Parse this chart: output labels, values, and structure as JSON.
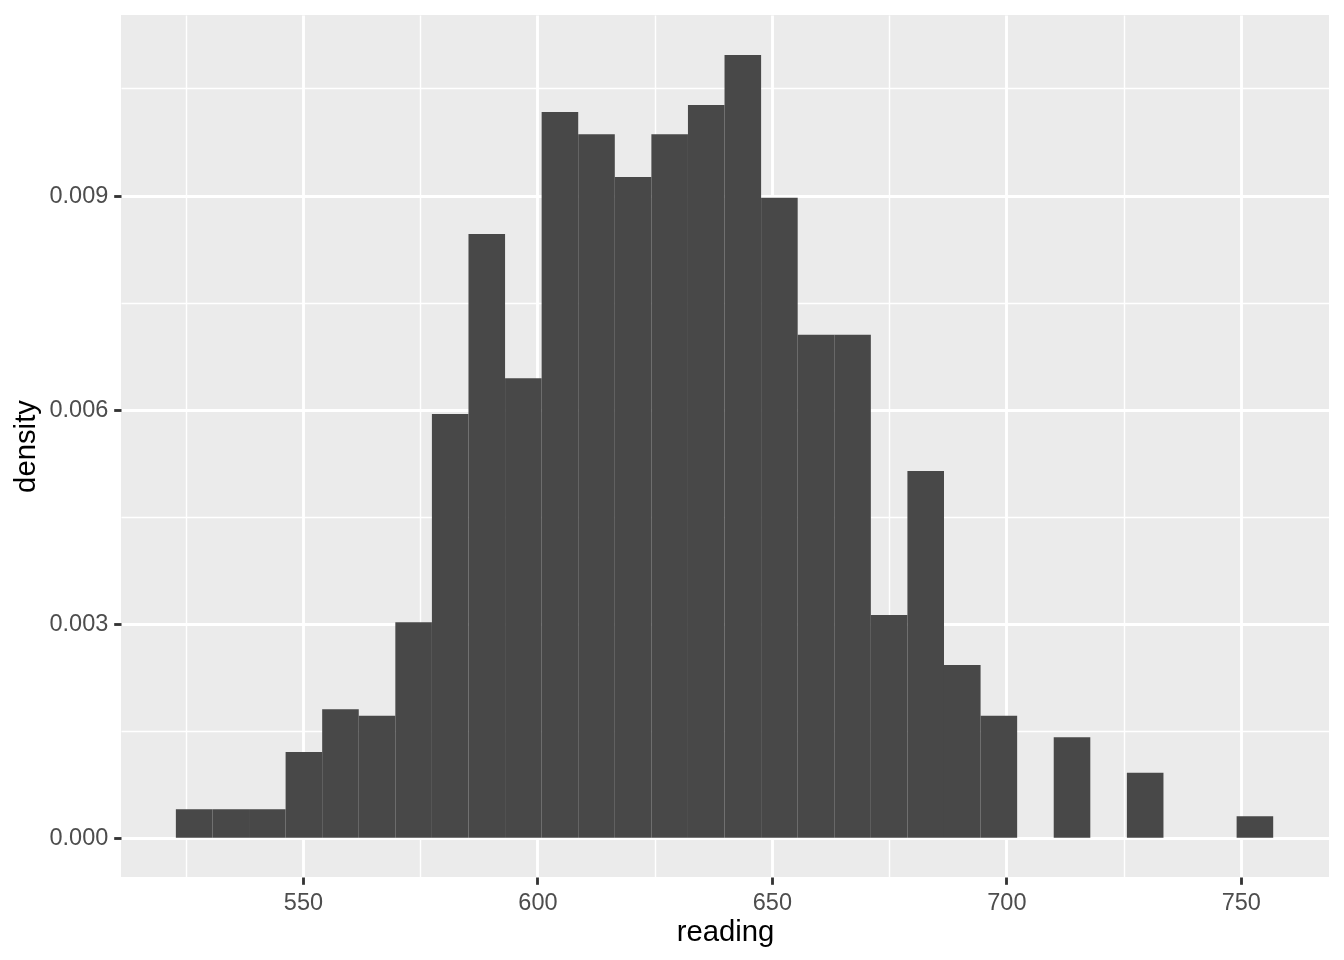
{
  "chart_data": {
    "type": "histogram",
    "xlabel": "reading",
    "ylabel": "density",
    "bins": [
      522.9,
      530.7,
      538.5,
      546.3,
      554.1,
      561.9,
      569.7,
      577.5,
      585.3,
      593.1,
      600.9,
      608.7,
      616.5,
      624.3,
      632.1,
      639.9,
      647.7,
      655.5,
      663.3,
      671.1,
      678.9,
      686.7,
      694.5,
      702.3,
      710.1,
      717.9,
      725.7,
      733.5,
      741.3,
      749.1,
      756.9
    ],
    "values": [
      0.0004,
      0.0004,
      0.0004,
      0.0012,
      0.0018,
      0.00171,
      0.00302,
      0.00594,
      0.00846,
      0.00644,
      0.01017,
      0.00986,
      0.00926,
      0.00986,
      0.01027,
      0.01097,
      0.00897,
      0.00705,
      0.00705,
      0.00312,
      0.00514,
      0.00242,
      0.00171,
      0,
      0.00141,
      0,
      0.00091,
      0,
      0,
      0.0003
    ],
    "color": "#484848",
    "xlim": [
      511.2,
      768.8
    ],
    "ylim": [
      -0.00055,
      0.01153
    ],
    "xticks": [
      550,
      600,
      650,
      700,
      750
    ],
    "yticks": [
      {
        "value": 0,
        "label": "0.000"
      },
      0.003,
      0.006,
      0.009
    ],
    "grid": true
  }
}
